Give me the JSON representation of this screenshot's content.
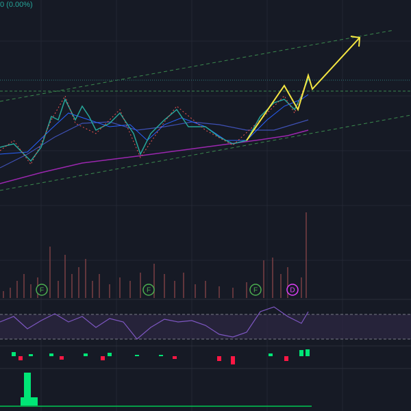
{
  "header": {
    "change": "0 (0.00%)"
  },
  "markers": [
    {
      "label": "F"
    },
    {
      "label": "F"
    },
    {
      "label": "F"
    },
    {
      "label": "D"
    }
  ]
}
